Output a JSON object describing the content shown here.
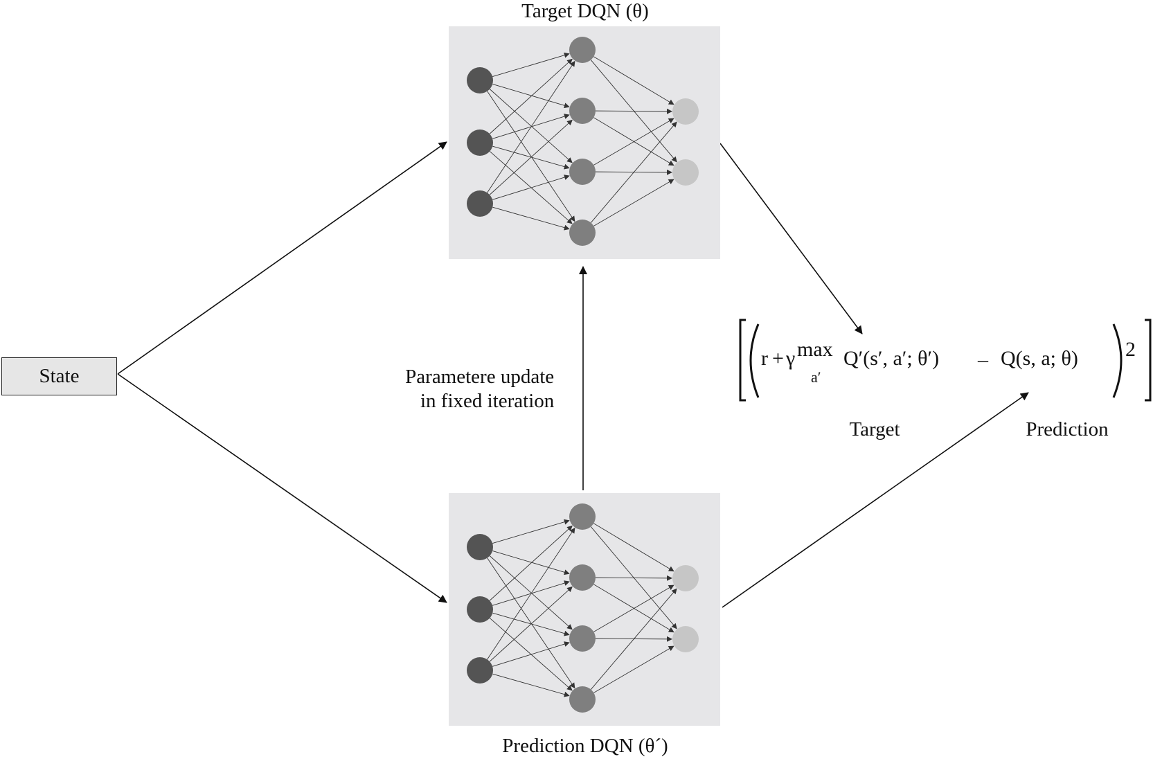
{
  "diagram": {
    "state_label": "State",
    "target_net_label": "Target DQN (θ)",
    "prediction_net_label": "Prediction DQN (θ´)",
    "update_label": {
      "line1": "Parametere update",
      "line2": "in fixed iteration"
    },
    "formula": {
      "r": "r",
      "plus": "+",
      "gamma": "γ",
      "max": "max",
      "max_sub": "a′",
      "target_q": "Q′(s′, a′; θ′)",
      "minus": "–",
      "pred_q": "Q(s, a; θ)",
      "exponent": "2"
    },
    "target_caption": "Target",
    "prediction_caption": "Prediction",
    "network": {
      "layers": [
        3,
        4,
        2
      ],
      "colors": {
        "input": "#545454",
        "hidden": "#7f7f7f",
        "output": "#c6c6c6",
        "panel": "#e6e6e8"
      }
    }
  }
}
